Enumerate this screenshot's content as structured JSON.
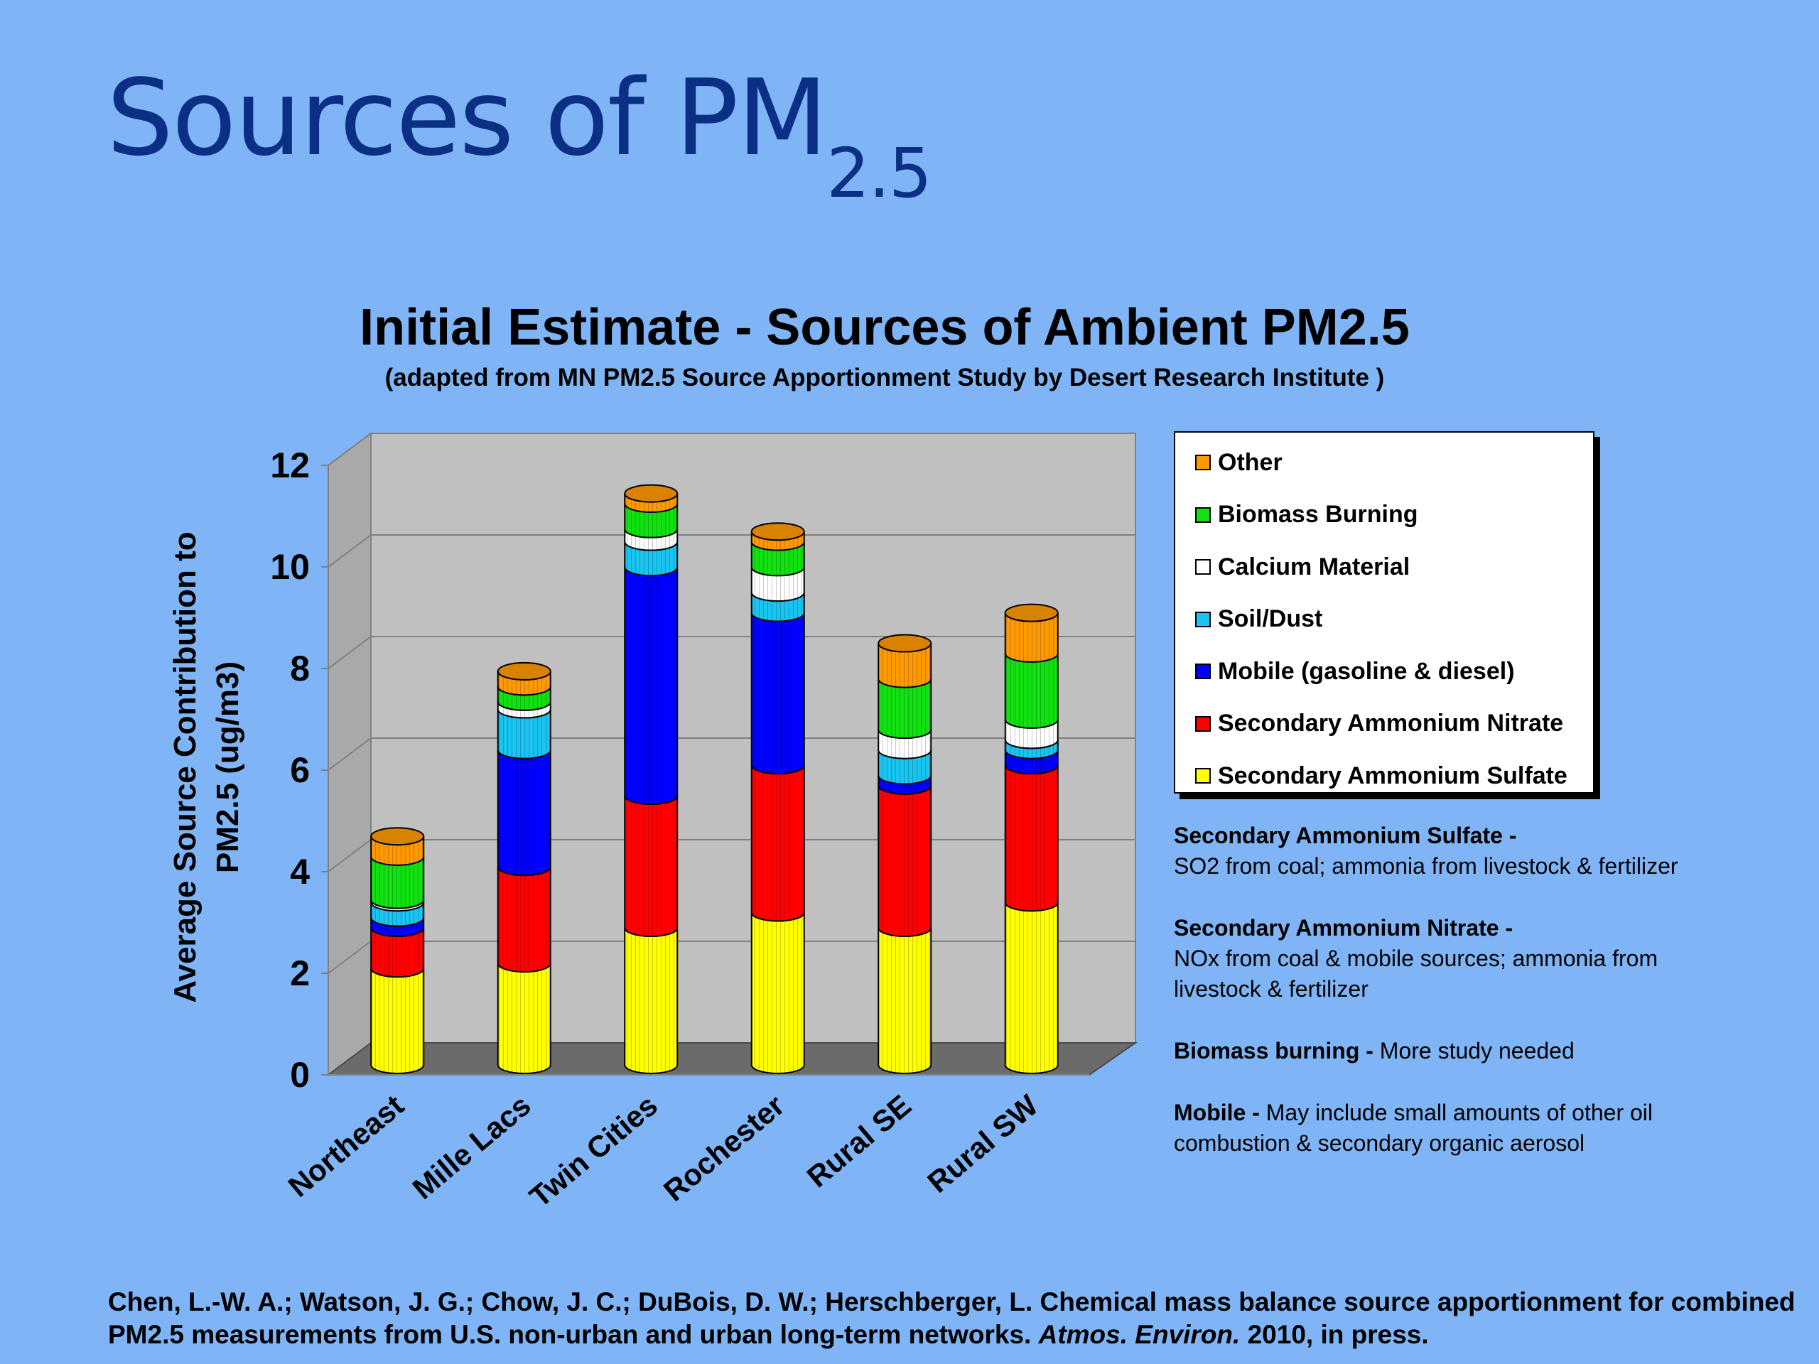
{
  "slide": {
    "title_main": "Sources of PM",
    "title_sub": "2.5"
  },
  "chart_data": {
    "type": "bar",
    "stacked": true,
    "title": "Initial Estimate - Sources of Ambient PM2.5",
    "subtitle": "(adapted from MN PM2.5 Source Apportionment Study by Desert Research Institute )",
    "ylabel_line1": "Average Source Contribution to",
    "ylabel_line2": "PM2.5 (ug/m3)",
    "ylim": [
      0,
      12
    ],
    "yticks": [
      0,
      2,
      4,
      6,
      8,
      10,
      12
    ],
    "grid": true,
    "legend_position": "right",
    "categories": [
      "Northeast",
      "Mille Lacs",
      "Twin Cities",
      "Rochester",
      "Rural SE",
      "Rural SW"
    ],
    "series": [
      {
        "name": "Secondary Ammonium Sulfate",
        "color": "#ffff00",
        "values": [
          1.9,
          2.0,
          2.7,
          3.0,
          2.7,
          3.2
        ]
      },
      {
        "name": "Secondary Ammonium Nitrate",
        "color": "#ff0000",
        "values": [
          0.8,
          1.9,
          2.6,
          2.9,
          2.8,
          2.7
        ]
      },
      {
        "name": "Mobile (gasoline & diesel)",
        "color": "#0000ff",
        "values": [
          0.2,
          2.3,
          4.5,
          3.0,
          0.2,
          0.3
        ]
      },
      {
        "name": "Soil/Dust",
        "color": "#19c4f0",
        "values": [
          0.3,
          0.8,
          0.5,
          0.4,
          0.5,
          0.2
        ]
      },
      {
        "name": "Calcium Material",
        "color": "#ffffff",
        "values": [
          0.05,
          0.15,
          0.25,
          0.5,
          0.4,
          0.4
        ]
      },
      {
        "name": "Biomass Burning",
        "color": "#11e011",
        "values": [
          0.85,
          0.3,
          0.5,
          0.5,
          1.0,
          1.3
        ]
      },
      {
        "name": "Other",
        "color": "#ff9900",
        "values": [
          0.4,
          0.3,
          0.2,
          0.2,
          0.7,
          0.8
        ]
      }
    ]
  },
  "notes": [
    {
      "heading": "Secondary Ammonium Sulfate -",
      "text": "SO2 from coal; ammonia from livestock & fertilizer",
      "inline": false
    },
    {
      "heading": "Secondary Ammonium Nitrate -",
      "text": "NOx from coal & mobile sources; ammonia from livestock & fertilizer",
      "inline": false
    },
    {
      "heading": "Biomass burning -",
      "text": "More study needed",
      "inline": true
    },
    {
      "heading": "Mobile -",
      "text": "May include small amounts of other oil combustion & secondary organic aerosol",
      "inline": true
    }
  ],
  "citation": {
    "text_before": "Chen, L.-W. A.; Watson, J. G.; Chow, J. C.; DuBois, D. W.; Herschberger, L. Chemical mass balance source apportionment for combined PM2.5 measurements from U.S. non-urban and urban long-term networks.",
    "journal": "Atmos. Environ.",
    "text_after": "2010,  in press."
  }
}
